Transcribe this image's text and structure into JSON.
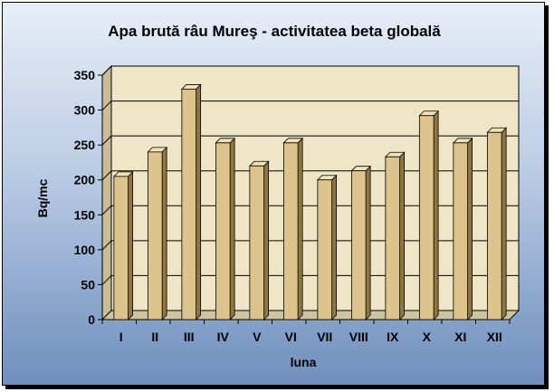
{
  "chart_data": {
    "type": "bar",
    "title": "Apa brută râu Mureş - activitatea beta globală",
    "xlabel": "luna",
    "ylabel": "Bq/mc",
    "categories": [
      "I",
      "II",
      "III",
      "IV",
      "V",
      "VI",
      "VII",
      "VIII",
      "IX",
      "X",
      "XI",
      "XII"
    ],
    "values": [
      205,
      240,
      330,
      253,
      220,
      253,
      200,
      213,
      233,
      292,
      253,
      268
    ],
    "ylim": [
      0,
      350
    ],
    "yticks": [
      "0",
      "50",
      "100",
      "150",
      "200",
      "250",
      "300",
      "350"
    ],
    "grid": true,
    "legend": "none",
    "colors": {
      "bar_front": "#ddc48c",
      "bar_side": "#8f7640",
      "bar_top": "#f1e2b8",
      "wall": "#efe6c8",
      "floor": "#cfc3a0"
    }
  }
}
